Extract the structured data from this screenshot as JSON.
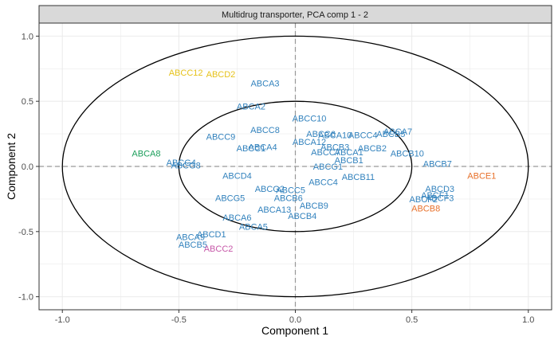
{
  "chart_data": {
    "type": "scatter",
    "title": "Multidrug transporter, PCA comp 1 - 2",
    "xlabel": "Component  1",
    "ylabel": "Component  2",
    "xlim": [
      -1.1,
      1.1
    ],
    "ylim": [
      -1.1,
      1.1
    ],
    "x_ticks": [
      "-1.0",
      "-0.5",
      "0.0",
      "0.5",
      "1.0"
    ],
    "y_ticks": [
      "-1.0",
      "-0.5",
      "0.0",
      "0.5",
      "1.0"
    ],
    "x_tick_values": [
      -1.0,
      -0.5,
      0.0,
      0.5,
      1.0
    ],
    "y_tick_values": [
      -1.0,
      -0.5,
      0.0,
      0.5,
      1.0
    ],
    "grid": true,
    "reference_lines": [
      0,
      0
    ],
    "circles": [
      {
        "radius": 0.5
      },
      {
        "radius": 1.0
      }
    ],
    "colors": {
      "blue": "#3282BD",
      "yellow": "#E6C21A",
      "green": "#1B9E5A",
      "orange": "#E8712B",
      "pink": "#C657A8",
      "panel_border": "#333333",
      "grid": "#ebebeb",
      "strip_bg": "#d9d9d9",
      "ellipse": "#000000",
      "refline": "#999999"
    },
    "points": [
      {
        "label": "ABCC12",
        "x": -0.47,
        "y": 0.72,
        "color": "yellow"
      },
      {
        "label": "ABCD2",
        "x": -0.32,
        "y": 0.71,
        "color": "yellow"
      },
      {
        "label": "ABCA3",
        "x": -0.13,
        "y": 0.64,
        "color": "blue"
      },
      {
        "label": "ABCA2",
        "x": -0.19,
        "y": 0.46,
        "color": "blue"
      },
      {
        "label": "ABCC10",
        "x": 0.06,
        "y": 0.37,
        "color": "blue"
      },
      {
        "label": "ABCC8",
        "x": -0.13,
        "y": 0.28,
        "color": "blue"
      },
      {
        "label": "ABCC6",
        "x": 0.11,
        "y": 0.25,
        "color": "blue"
      },
      {
        "label": "ABCA10",
        "x": 0.17,
        "y": 0.24,
        "color": "blue"
      },
      {
        "label": "ABCC4",
        "x": 0.29,
        "y": 0.24,
        "color": "blue"
      },
      {
        "label": "ABCA7",
        "x": 0.44,
        "y": 0.27,
        "color": "blue"
      },
      {
        "label": "ABCB5",
        "x": 0.41,
        "y": 0.25,
        "color": "blue"
      },
      {
        "label": "ABCC9",
        "x": -0.32,
        "y": 0.23,
        "color": "blue"
      },
      {
        "label": "ABCA12",
        "x": 0.06,
        "y": 0.19,
        "color": "blue"
      },
      {
        "label": "ABCA4",
        "x": -0.14,
        "y": 0.15,
        "color": "blue"
      },
      {
        "label": "ABCC1",
        "x": -0.19,
        "y": 0.14,
        "color": "blue"
      },
      {
        "label": "ABCB3",
        "x": 0.17,
        "y": 0.15,
        "color": "blue"
      },
      {
        "label": "ABCB2",
        "x": 0.33,
        "y": 0.14,
        "color": "blue"
      },
      {
        "label": "ABCC7",
        "x": 0.13,
        "y": 0.11,
        "color": "blue"
      },
      {
        "label": "ABCA1",
        "x": 0.23,
        "y": 0.11,
        "color": "blue"
      },
      {
        "label": "ABCB10",
        "x": 0.48,
        "y": 0.1,
        "color": "blue"
      },
      {
        "label": "ABCA8",
        "x": -0.64,
        "y": 0.1,
        "color": "green"
      },
      {
        "label": "ABCB1",
        "x": 0.23,
        "y": 0.05,
        "color": "blue"
      },
      {
        "label": "ABCG4",
        "x": -0.49,
        "y": 0.03,
        "color": "blue"
      },
      {
        "label": "ABCG8",
        "x": -0.47,
        "y": 0.01,
        "color": "blue"
      },
      {
        "label": "ABCG1",
        "x": 0.14,
        "y": 0.0,
        "color": "blue"
      },
      {
        "label": "ABCB7",
        "x": 0.61,
        "y": 0.02,
        "color": "blue"
      },
      {
        "label": "ABCE1",
        "x": 0.8,
        "y": -0.07,
        "color": "orange"
      },
      {
        "label": "ABCD4",
        "x": -0.25,
        "y": -0.07,
        "color": "blue"
      },
      {
        "label": "ABCB11",
        "x": 0.27,
        "y": -0.08,
        "color": "blue"
      },
      {
        "label": "ABCC4",
        "x": 0.12,
        "y": -0.12,
        "color": "blue"
      },
      {
        "label": "ABCG2",
        "x": -0.11,
        "y": -0.17,
        "color": "blue"
      },
      {
        "label": "ABCC5",
        "x": -0.02,
        "y": -0.18,
        "color": "blue"
      },
      {
        "label": "ABCD3",
        "x": 0.62,
        "y": -0.17,
        "color": "blue"
      },
      {
        "label": "ABCG5",
        "x": -0.28,
        "y": -0.24,
        "color": "blue"
      },
      {
        "label": "ABCB6",
        "x": -0.03,
        "y": -0.24,
        "color": "blue"
      },
      {
        "label": "ABCF1",
        "x": 0.6,
        "y": -0.22,
        "color": "blue"
      },
      {
        "label": "ABCF3",
        "x": 0.62,
        "y": -0.24,
        "color": "blue"
      },
      {
        "label": "ABCF2",
        "x": 0.55,
        "y": -0.25,
        "color": "blue"
      },
      {
        "label": "ABCB9",
        "x": 0.08,
        "y": -0.3,
        "color": "blue"
      },
      {
        "label": "ABCB8",
        "x": 0.56,
        "y": -0.32,
        "color": "orange"
      },
      {
        "label": "ABCA13",
        "x": -0.09,
        "y": -0.33,
        "color": "blue"
      },
      {
        "label": "ABCB4",
        "x": 0.03,
        "y": -0.38,
        "color": "blue"
      },
      {
        "label": "ABCA6",
        "x": -0.25,
        "y": -0.39,
        "color": "blue"
      },
      {
        "label": "ABCA5",
        "x": -0.18,
        "y": -0.46,
        "color": "blue"
      },
      {
        "label": "ABCD1",
        "x": -0.36,
        "y": -0.52,
        "color": "blue"
      },
      {
        "label": "ABCA9",
        "x": -0.45,
        "y": -0.54,
        "color": "blue"
      },
      {
        "label": "ABCB5",
        "x": -0.44,
        "y": -0.6,
        "color": "blue"
      },
      {
        "label": "ABCC2",
        "x": -0.33,
        "y": -0.63,
        "color": "pink"
      }
    ]
  }
}
